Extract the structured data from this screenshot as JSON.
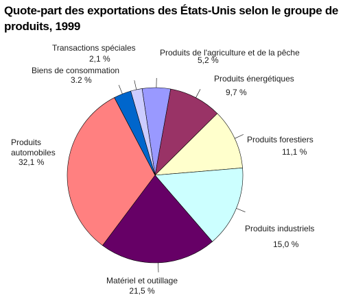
{
  "chart_data": {
    "type": "pie",
    "title": "Quote-part des exportations des États-Unis selon le groupe de produits, 1999",
    "legend": "none",
    "slices": [
      {
        "label": "Produits de l'agriculture et de la pêche",
        "value": 5.2,
        "value_label": "5,2 %",
        "color": "#9999ff"
      },
      {
        "label": "Produits énergétiques",
        "value": 9.7,
        "value_label": "9,7 %",
        "color": "#993366"
      },
      {
        "label": "Produits forestiers",
        "value": 11.1,
        "value_label": "11,1 %",
        "color": "#ffffcc"
      },
      {
        "label": "Produits industriels",
        "value": 15.0,
        "value_label": "15,0 %",
        "color": "#ccffff"
      },
      {
        "label": "Matériel et outillage",
        "value": 21.5,
        "value_label": "21,5 %",
        "color": "#660066"
      },
      {
        "label": "Produits automobiles",
        "value": 32.1,
        "value_label": "32,1 %",
        "color": "#ff8080"
      },
      {
        "label": "Biens de consommation",
        "value": 3.2,
        "value_label": "3.2 %",
        "color": "#0066cc"
      },
      {
        "label": "Transactions spéciales",
        "value": 2.1,
        "value_label": "2,1 %",
        "color": "#ccccff"
      }
    ]
  }
}
